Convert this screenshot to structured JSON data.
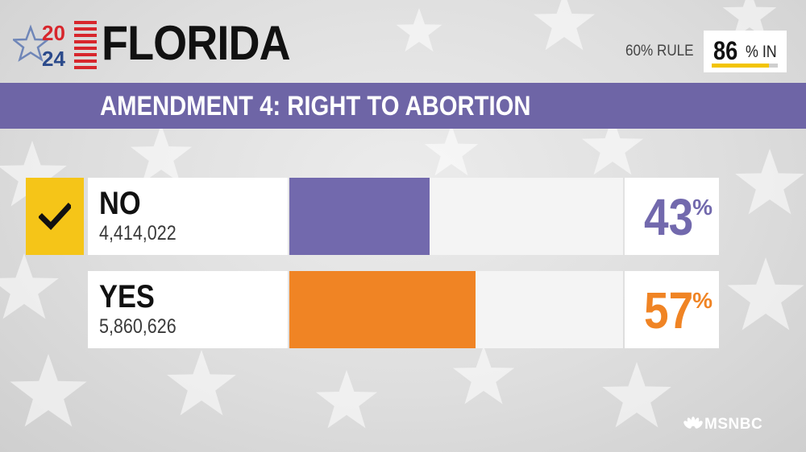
{
  "header": {
    "logo_year_top": "20",
    "logo_year_bottom": "24",
    "state": "FLORIDA",
    "rule": "60% RULE",
    "reporting_value": "86",
    "reporting_suffix": "% IN",
    "reporting_fraction": 0.86
  },
  "title": "AMENDMENT 4: RIGHT TO ABORTION",
  "results": [
    {
      "label": "NO",
      "votes": "4,414,022",
      "pct_value": "43",
      "pct_sign": "%",
      "pct_fraction": 0.43,
      "color": "#7269ad",
      "winner_check": true
    },
    {
      "label": "YES",
      "votes": "5,860,626",
      "pct_value": "57",
      "pct_sign": "%",
      "pct_fraction": 0.57,
      "color": "#f08424",
      "winner_check": false
    }
  ],
  "network": "MSNBC",
  "colors": {
    "band": "#6e65a6",
    "check": "#f5c518",
    "logo_red": "#d7262c",
    "logo_blue": "#2b4a8b"
  }
}
